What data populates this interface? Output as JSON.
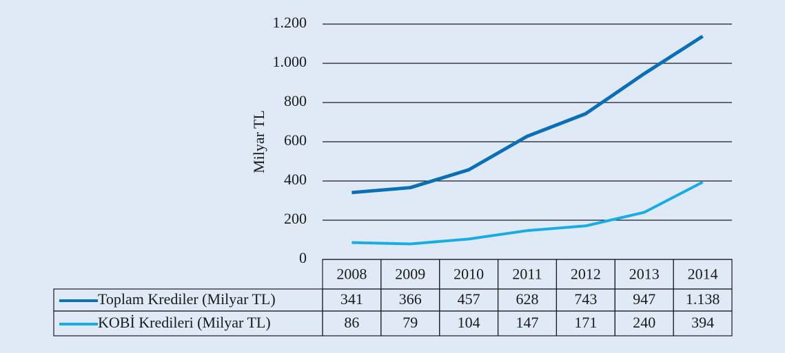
{
  "chart_data": {
    "type": "line",
    "y_label": "Milyar TL",
    "categories": [
      "2008",
      "2009",
      "2010",
      "2011",
      "2012",
      "2013",
      "2014"
    ],
    "series": [
      {
        "name": "Toplam Krediler (Milyar TL)",
        "color": "#0b6fb6",
        "values": [
          341,
          366,
          457,
          628,
          743,
          947,
          1138
        ],
        "value_labels": [
          "341",
          "366",
          "457",
          "628",
          "743",
          "947",
          "1.138"
        ]
      },
      {
        "name": "KOBİ Kredileri (Milyar TL)",
        "color": "#17ade4",
        "values": [
          86,
          79,
          104,
          147,
          171,
          240,
          394
        ]
      }
    ],
    "ylim": [
      0,
      1200
    ],
    "yticks": [
      0,
      200,
      400,
      600,
      800,
      {
        "value": 1000,
        "label": "1.000"
      },
      {
        "value": 1200,
        "label": "1.200"
      }
    ],
    "grid": true
  }
}
